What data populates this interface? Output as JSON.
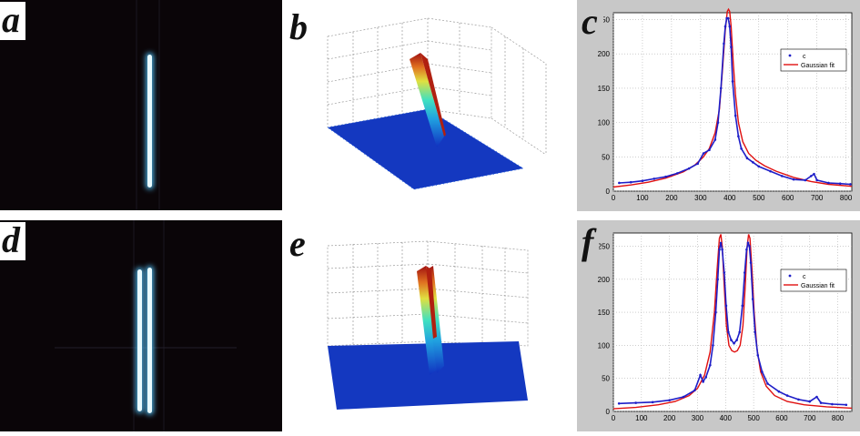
{
  "panels": [
    {
      "id": "a",
      "label": "a",
      "kind": "photo",
      "lines": 1
    },
    {
      "id": "b",
      "label": "b",
      "kind": "surface",
      "peaks": 1
    },
    {
      "id": "c",
      "label": "c",
      "kind": "chart"
    },
    {
      "id": "d",
      "label": "d",
      "kind": "photo",
      "lines": 2
    },
    {
      "id": "e",
      "label": "e",
      "kind": "surface",
      "peaks": 2
    },
    {
      "id": "f",
      "label": "f",
      "kind": "chart"
    }
  ],
  "colors": {
    "data": "#1e1ec8",
    "fit": "#e01010",
    "photo_bg": "#0a0508",
    "line_glow": "#bfefff"
  },
  "chart_data": [
    {
      "panel": "c",
      "type": "line",
      "xlim": [
        0,
        820
      ],
      "ylim": [
        0,
        260
      ],
      "xticks": [
        "0",
        "100",
        "200",
        "300",
        "400",
        "500",
        "600",
        "700",
        "800"
      ],
      "yticks": [
        "0",
        "50",
        "100",
        "150",
        "200",
        "250"
      ],
      "grid": true,
      "legend_position": "top-right",
      "series": [
        {
          "name": "c",
          "style": "points",
          "x": [
            20,
            60,
            100,
            140,
            180,
            220,
            260,
            290,
            310,
            330,
            350,
            360,
            370,
            380,
            385,
            390,
            395,
            400,
            405,
            410,
            420,
            430,
            440,
            460,
            480,
            500,
            540,
            580,
            620,
            660,
            680,
            690,
            700,
            740,
            780,
            815
          ],
          "y": [
            12,
            13,
            15,
            18,
            21,
            26,
            33,
            40,
            55,
            60,
            75,
            100,
            150,
            215,
            240,
            252,
            252,
            240,
            210,
            160,
            110,
            80,
            62,
            48,
            42,
            36,
            29,
            22,
            17,
            16,
            22,
            25,
            16,
            12,
            11,
            10
          ]
        },
        {
          "name": "Gaussian fit",
          "style": "line",
          "x": [
            0,
            60,
            120,
            180,
            240,
            280,
            310,
            330,
            350,
            365,
            375,
            385,
            392,
            396,
            400,
            405,
            412,
            420,
            430,
            445,
            465,
            490,
            520,
            560,
            620,
            680,
            740,
            820
          ],
          "y": [
            6,
            9,
            13,
            19,
            28,
            38,
            50,
            62,
            85,
            120,
            175,
            235,
            262,
            265,
            262,
            240,
            190,
            140,
            100,
            72,
            55,
            45,
            37,
            29,
            20,
            14,
            10,
            7
          ]
        }
      ]
    },
    {
      "panel": "f",
      "type": "line",
      "xlim": [
        0,
        850
      ],
      "ylim": [
        0,
        270
      ],
      "xticks": [
        "0",
        "100",
        "200",
        "300",
        "400",
        "500",
        "600",
        "700",
        "800"
      ],
      "yticks": [
        "0",
        "50",
        "100",
        "150",
        "200",
        "250"
      ],
      "grid": true,
      "legend_position": "top-right",
      "series": [
        {
          "name": "c",
          "style": "points",
          "x": [
            20,
            80,
            140,
            200,
            250,
            290,
            310,
            320,
            330,
            345,
            355,
            365,
            372,
            378,
            383,
            388,
            395,
            402,
            410,
            420,
            430,
            440,
            450,
            460,
            468,
            475,
            480,
            485,
            490,
            497,
            505,
            515,
            530,
            550,
            590,
            620,
            660,
            700,
            725,
            740,
            780,
            830
          ],
          "y": [
            12,
            13,
            14,
            17,
            22,
            32,
            55,
            45,
            52,
            70,
            100,
            150,
            200,
            245,
            255,
            245,
            210,
            160,
            120,
            108,
            103,
            108,
            120,
            160,
            210,
            245,
            255,
            250,
            225,
            170,
            120,
            85,
            60,
            42,
            30,
            24,
            18,
            15,
            22,
            13,
            11,
            10
          ]
        },
        {
          "name": "Gaussian fit",
          "style": "line",
          "x": [
            0,
            80,
            160,
            220,
            270,
            300,
            325,
            345,
            360,
            370,
            378,
            383,
            388,
            395,
            403,
            412,
            422,
            432,
            442,
            452,
            462,
            470,
            477,
            482,
            487,
            494,
            502,
            512,
            525,
            545,
            575,
            620,
            680,
            760,
            850
          ],
          "y": [
            4,
            6,
            10,
            15,
            24,
            35,
            55,
            90,
            150,
            215,
            262,
            268,
            250,
            190,
            130,
            100,
            92,
            90,
            92,
            100,
            130,
            190,
            250,
            268,
            262,
            215,
            150,
            95,
            60,
            38,
            24,
            15,
            10,
            7,
            5
          ]
        }
      ]
    }
  ]
}
